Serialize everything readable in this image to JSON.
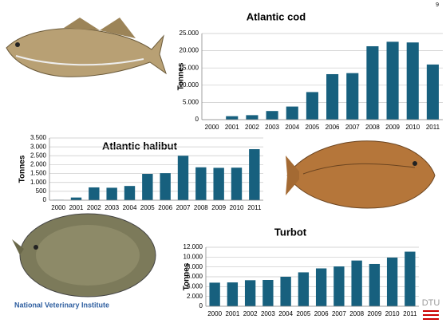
{
  "page_number": "9",
  "footer": {
    "institute": "National Veterinary Institute",
    "logo": "DTU"
  },
  "chart_data": [
    {
      "type": "bar",
      "title": "Atlantic cod",
      "y_label": "Tonnes",
      "color": "#17607e",
      "grid": true,
      "categories": [
        "2000",
        "2001",
        "2002",
        "2003",
        "2004",
        "2005",
        "2006",
        "2007",
        "2008",
        "2009",
        "2010",
        "2011"
      ],
      "values": [
        0,
        1000,
        1300,
        2500,
        3800,
        8000,
        13200,
        13500,
        21300,
        22600,
        22400,
        16000
      ],
      "ylim": [
        0,
        25000
      ],
      "yticks": [
        0,
        {
          "value": 5000,
          "label": "5.000"
        },
        {
          "value": 10000,
          "label": "10.000"
        },
        {
          "value": 15000,
          "label": "15.000"
        },
        {
          "value": 20000,
          "label": "20.000"
        },
        {
          "value": 25000,
          "label": "25.000"
        }
      ]
    },
    {
      "type": "bar",
      "title": "Atlantic halibut",
      "y_label": "Tonnes",
      "color": "#17607e",
      "grid": true,
      "categories": [
        "2000",
        "2001",
        "2002",
        "2003",
        "2004",
        "2005",
        "2006",
        "2007",
        "2008",
        "2009",
        "2010",
        "2011"
      ],
      "values": [
        20,
        150,
        720,
        700,
        800,
        1480,
        1520,
        2500,
        1850,
        1820,
        1830,
        2870
      ],
      "ylim": [
        0,
        3500
      ],
      "yticks": [
        0,
        500,
        {
          "value": 1000,
          "label": "1.000"
        },
        {
          "value": 1500,
          "label": "1.500"
        },
        {
          "value": 2000,
          "label": "2.000"
        },
        {
          "value": 2500,
          "label": "2.500"
        },
        {
          "value": 3000,
          "label": "3.000"
        },
        {
          "value": 3500,
          "label": "3.500"
        }
      ]
    },
    {
      "type": "bar",
      "title": "Turbot",
      "y_label": "Tonnes",
      "color": "#17607e",
      "grid": true,
      "categories": [
        "2000",
        "2001",
        "2002",
        "2003",
        "2004",
        "2005",
        "2006",
        "2007",
        "2008",
        "2009",
        "2010",
        "2011"
      ],
      "values": [
        4800,
        4850,
        5300,
        5350,
        6000,
        6900,
        7700,
        8100,
        9300,
        8600,
        9900,
        11100
      ],
      "ylim": [
        0,
        12000
      ],
      "yticks": [
        0,
        {
          "value": 2000,
          "label": "2.000"
        },
        {
          "value": 4000,
          "label": "4.000"
        },
        {
          "value": 6000,
          "label": "6.000"
        },
        {
          "value": 8000,
          "label": "8.000"
        },
        {
          "value": 10000,
          "label": "10.000"
        },
        {
          "value": 12000,
          "label": "12.000"
        }
      ]
    }
  ]
}
